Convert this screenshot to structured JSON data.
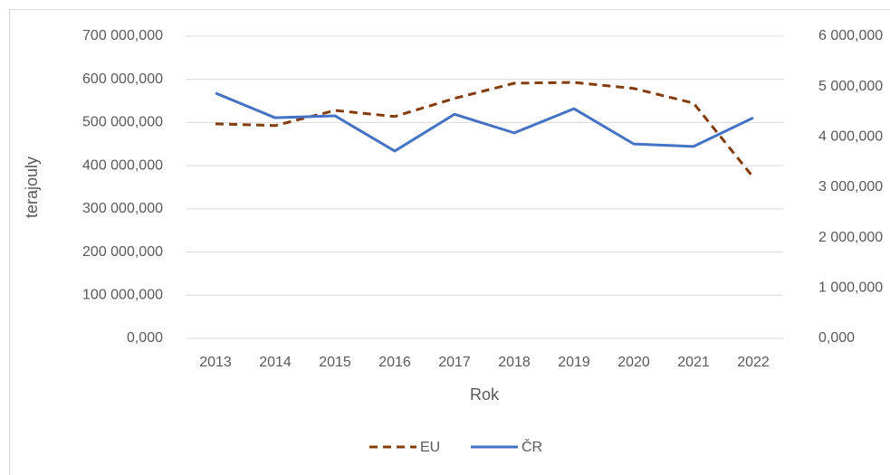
{
  "chart_data": {
    "type": "line",
    "x_label": "Rok",
    "y_label": "terajouly",
    "categories": [
      "2013",
      "2014",
      "2015",
      "2016",
      "2017",
      "2018",
      "2019",
      "2020",
      "2021",
      "2022"
    ],
    "series": [
      {
        "name": "EU",
        "color": "#843c0c",
        "dashed": true,
        "values": [
          497000000,
          493000000,
          528000000,
          514000000,
          556000000,
          591000000,
          593000000,
          579000000,
          545000000,
          373000000
        ]
      },
      {
        "name": "ČR",
        "color": "#4472c4",
        "axis": "y2",
        "values": [
          4870000,
          4380000,
          4420000,
          3720000,
          4450000,
          4080000,
          4560000,
          3860000,
          3810000,
          4380000
        ]
      }
    ],
    "ylim": [
      0,
      700000000
    ],
    "yticks": [
      {
        "value": 0,
        "label": "0,000"
      },
      {
        "value": 100000000,
        "label": "100 000,000"
      },
      {
        "value": 200000000,
        "label": "200 000,000"
      },
      {
        "value": 300000000,
        "label": "300 000,000"
      },
      {
        "value": 400000000,
        "label": "400 000,000"
      },
      {
        "value": 500000000,
        "label": "500 000,000"
      },
      {
        "value": 600000000,
        "label": "600 000,000"
      },
      {
        "value": 700000000,
        "label": "700 000,000"
      }
    ],
    "y2lim": [
      0,
      6000000
    ],
    "y2ticks": [
      {
        "value": 0,
        "label": "0,000"
      },
      {
        "value": 1000000,
        "label": "1 000,000"
      },
      {
        "value": 2000000,
        "label": "2 000,000"
      },
      {
        "value": 3000000,
        "label": "3 000,000"
      },
      {
        "value": 4000000,
        "label": "4 000,000"
      },
      {
        "value": 5000000,
        "label": "5 000,000"
      },
      {
        "value": 6000000,
        "label": "6 000,000"
      }
    ],
    "grid": true,
    "legend": "bottom"
  }
}
